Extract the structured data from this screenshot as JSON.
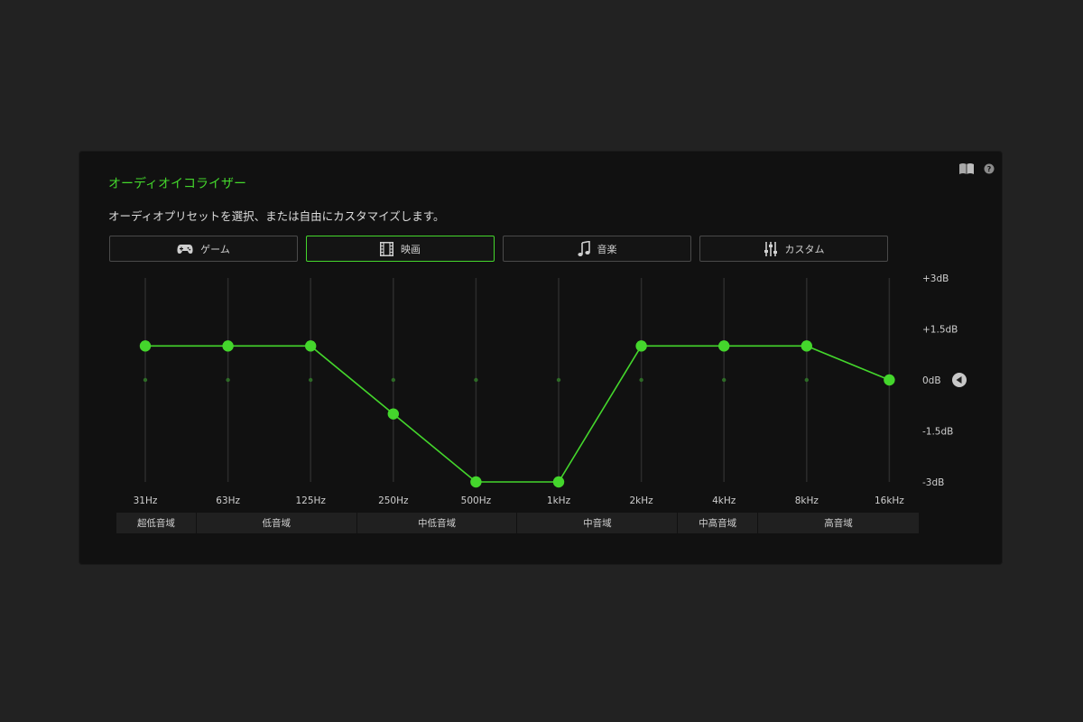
{
  "panel": {
    "title": "オーディオイコライザー",
    "description": "オーディオプリセットを選択、または自由にカスタマイズします。"
  },
  "top_icons": [
    "book-icon",
    "help-icon"
  ],
  "presets": [
    {
      "label": "ゲーム",
      "icon": "gamepad-icon",
      "active": false
    },
    {
      "label": "映画",
      "icon": "film-icon",
      "active": true
    },
    {
      "label": "音楽",
      "icon": "music-note-icon",
      "active": false
    },
    {
      "label": "カスタム",
      "icon": "sliders-icon",
      "active": false
    }
  ],
  "eq": {
    "frequencies": [
      "31Hz",
      "63Hz",
      "125Hz",
      "250Hz",
      "500Hz",
      "1kHz",
      "2kHz",
      "4kHz",
      "8kHz",
      "16kHz"
    ],
    "gains_db": [
      1.0,
      1.0,
      1.0,
      -1.0,
      -3.0,
      -3.0,
      1.0,
      1.0,
      1.0,
      0.0
    ],
    "db_range": [
      -3,
      3
    ],
    "db_ticks": [
      {
        "value": 3,
        "label": "+3dB"
      },
      {
        "value": 1.5,
        "label": "+1.5dB"
      },
      {
        "value": 0,
        "label": "0dB"
      },
      {
        "value": -1.5,
        "label": "-1.5dB"
      },
      {
        "value": -3,
        "label": "-3dB"
      }
    ],
    "bands": [
      {
        "label": "超低音域",
        "span": 1
      },
      {
        "label": "低音域",
        "span": 2
      },
      {
        "label": "中低音域",
        "span": 2
      },
      {
        "label": "中音域",
        "span": 2
      },
      {
        "label": "中高音域",
        "span": 1
      },
      {
        "label": "高音域",
        "span": 2
      }
    ]
  },
  "colors": {
    "accent": "#44d62c",
    "panel_bg": "#111111",
    "page_bg": "#222222"
  }
}
